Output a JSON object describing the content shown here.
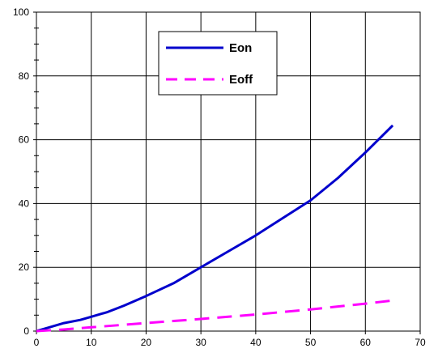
{
  "chart_data": {
    "type": "line",
    "title": "",
    "xlabel": "",
    "ylabel": "",
    "xlim": [
      0,
      70
    ],
    "ylim": [
      0,
      100
    ],
    "x_ticks": [
      0,
      10,
      20,
      30,
      40,
      50,
      60,
      70
    ],
    "y_ticks": [
      0,
      20,
      40,
      60,
      80,
      100
    ],
    "grid": true,
    "legend_position": "top-center",
    "series": [
      {
        "name": "Eon",
        "color": "#0000cc",
        "dash": "solid",
        "x": [
          0,
          2,
          5,
          8,
          10,
          13,
          16,
          20,
          25,
          30,
          35,
          40,
          45,
          50,
          55,
          60,
          65
        ],
        "y": [
          0,
          1,
          2.5,
          3.5,
          4.5,
          6,
          8,
          11,
          15,
          20,
          25,
          30,
          35.5,
          41,
          48,
          56,
          64.5
        ]
      },
      {
        "name": "Eoff",
        "color": "#ff00ff",
        "dash": "dashed",
        "x": [
          0,
          5,
          10,
          20,
          30,
          40,
          50,
          60,
          65
        ],
        "y": [
          0,
          0.5,
          1.2,
          2.5,
          3.8,
          5.2,
          6.8,
          8.6,
          9.6
        ]
      }
    ]
  }
}
